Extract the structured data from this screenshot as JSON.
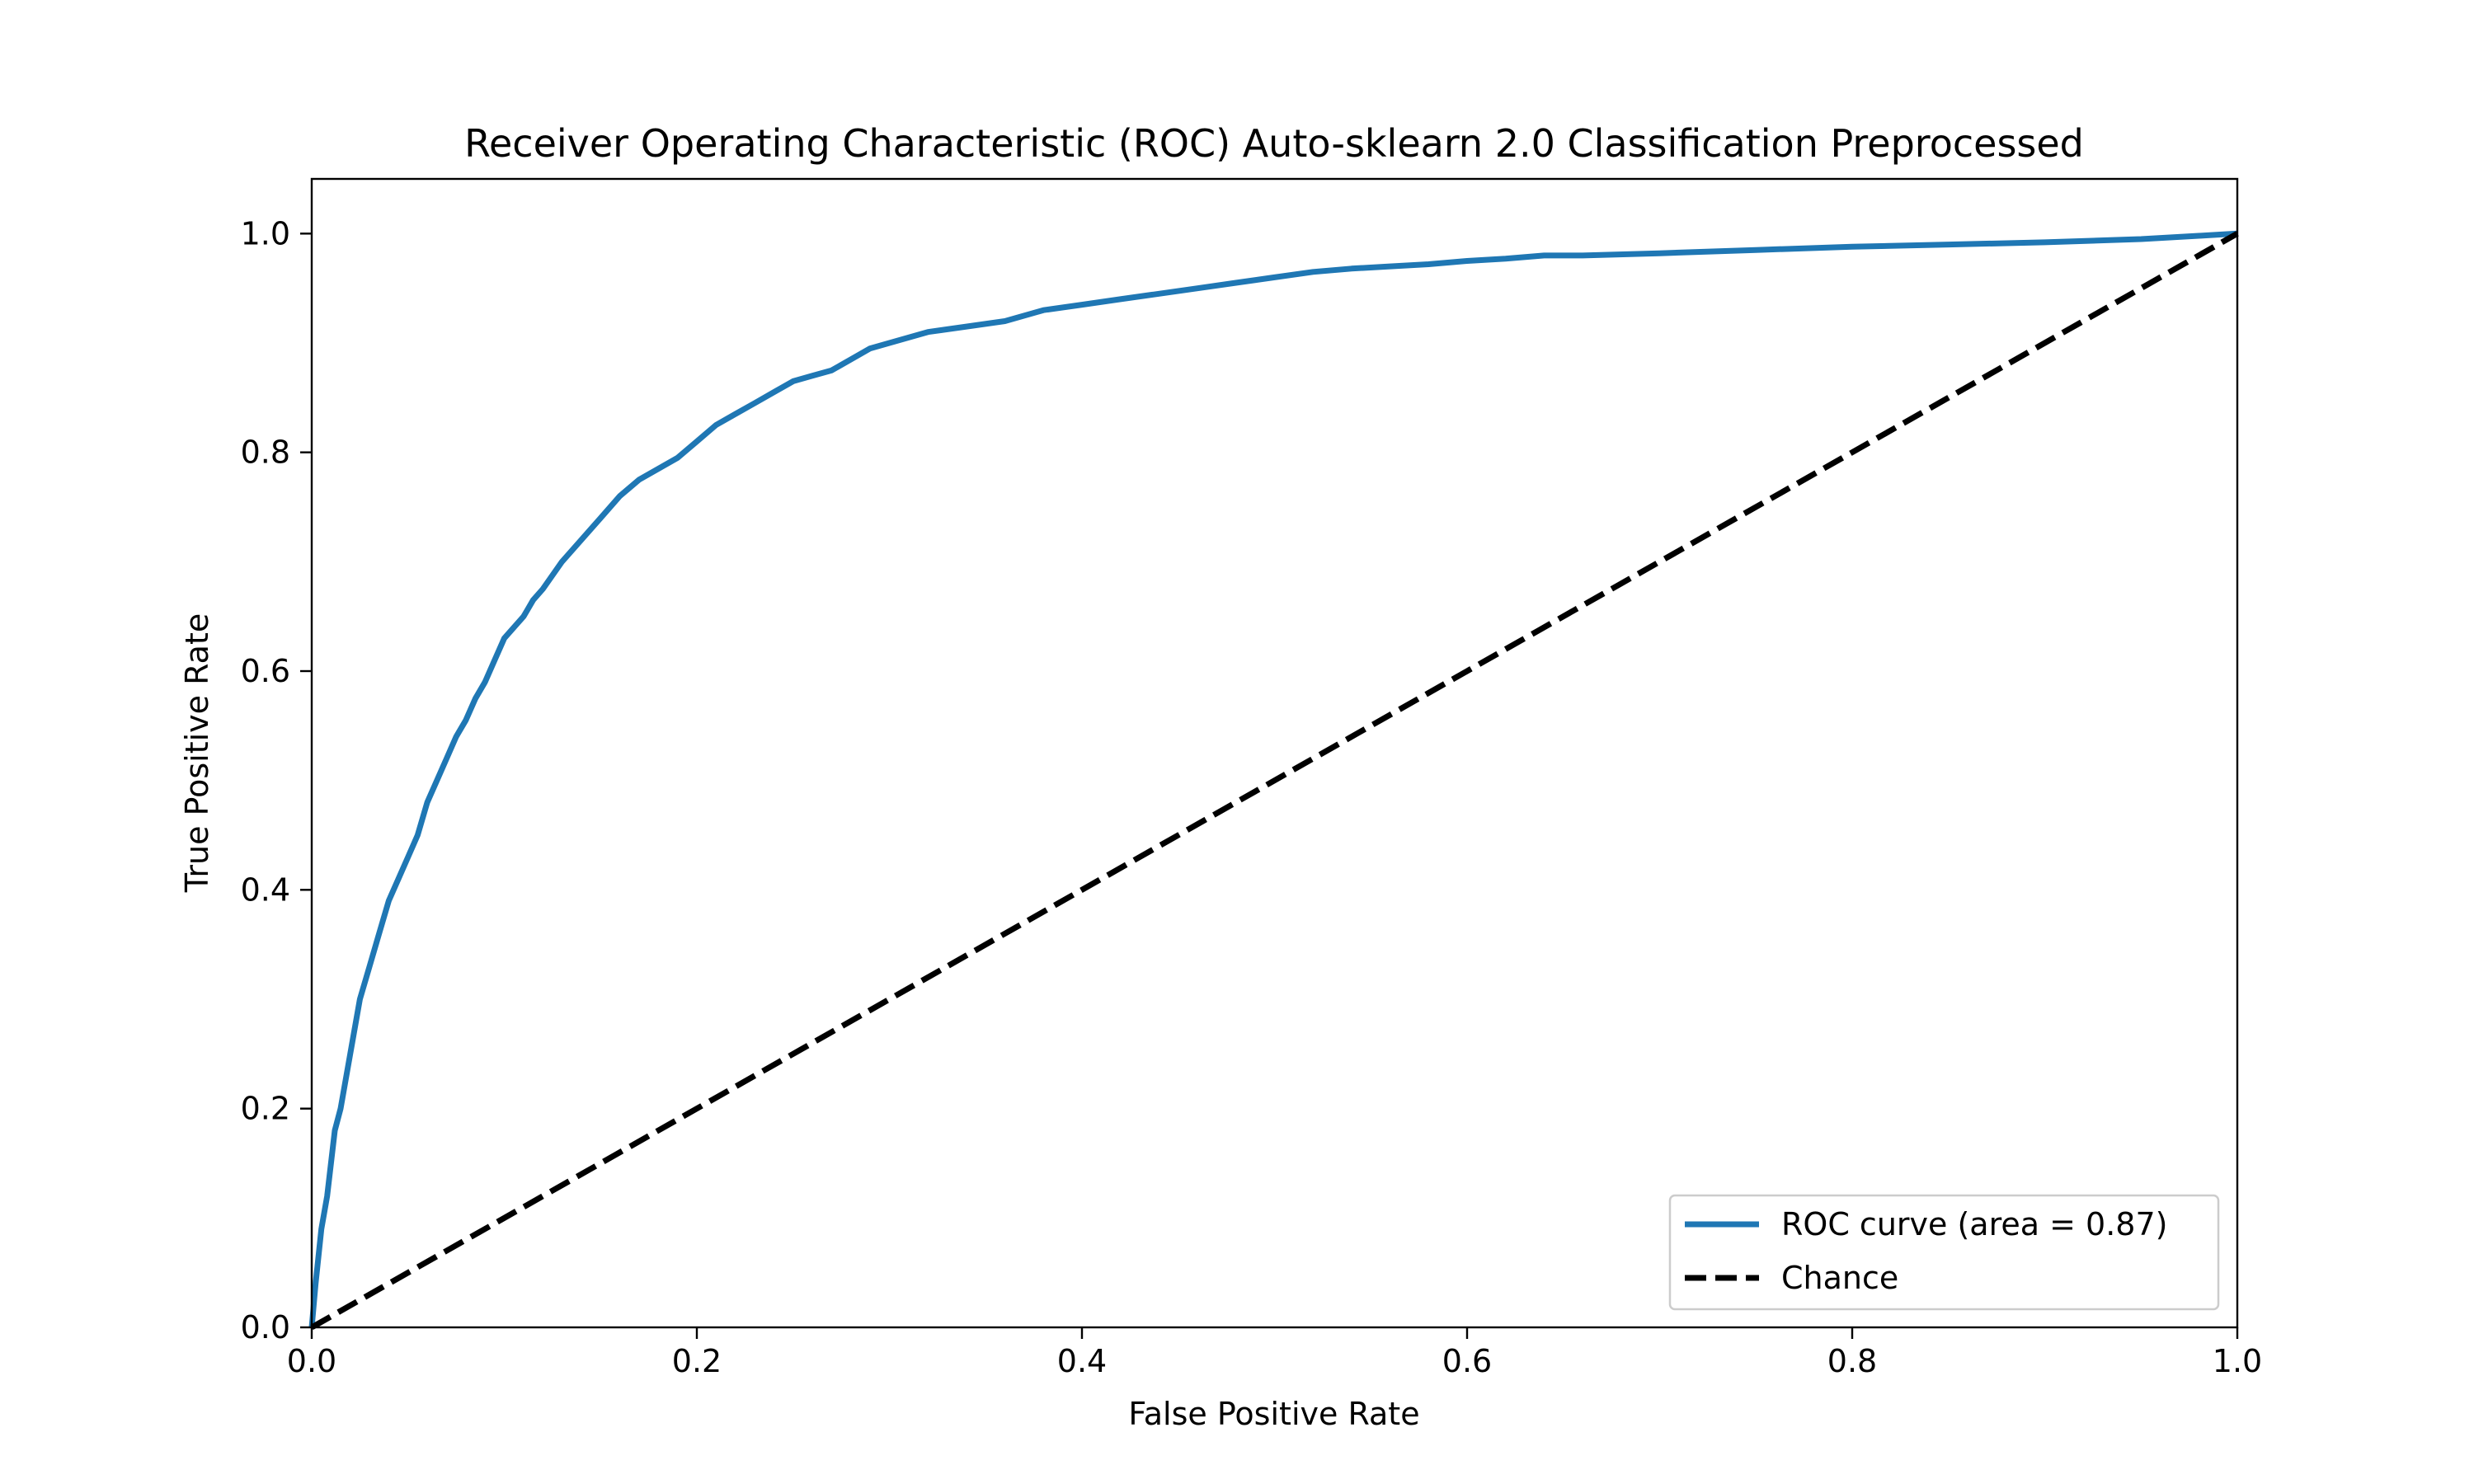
{
  "chart_data": {
    "type": "line",
    "title": "Receiver Operating Characteristic (ROC) Auto-sklearn 2.0 Classification Preprocessed",
    "xlabel": "False Positive Rate",
    "ylabel": "True Positive Rate",
    "xlim": [
      0.0,
      1.0
    ],
    "ylim": [
      0.0,
      1.05
    ],
    "xticks": [
      "0.0",
      "0.2",
      "0.4",
      "0.6",
      "0.8",
      "1.0"
    ],
    "yticks": [
      "0.0",
      "0.2",
      "0.4",
      "0.6",
      "0.8",
      "1.0"
    ],
    "grid": false,
    "legend_position": "lower-right",
    "series": [
      {
        "name": "ROC curve (area = 0.87)",
        "color": "#1f77b4",
        "style": "solid",
        "x": [
          0.0,
          0.002,
          0.005,
          0.008,
          0.012,
          0.015,
          0.02,
          0.025,
          0.03,
          0.035,
          0.04,
          0.045,
          0.05,
          0.055,
          0.06,
          0.065,
          0.07,
          0.075,
          0.08,
          0.085,
          0.09,
          0.095,
          0.1,
          0.105,
          0.11,
          0.115,
          0.12,
          0.13,
          0.14,
          0.15,
          0.16,
          0.17,
          0.18,
          0.19,
          0.2,
          0.21,
          0.22,
          0.23,
          0.24,
          0.25,
          0.26,
          0.27,
          0.28,
          0.29,
          0.3,
          0.32,
          0.34,
          0.36,
          0.38,
          0.4,
          0.42,
          0.44,
          0.46,
          0.48,
          0.5,
          0.52,
          0.54,
          0.56,
          0.58,
          0.6,
          0.62,
          0.64,
          0.66,
          0.7,
          0.75,
          0.8,
          0.85,
          0.9,
          0.95,
          0.98,
          1.0
        ],
        "y": [
          0.0,
          0.04,
          0.09,
          0.12,
          0.18,
          0.2,
          0.25,
          0.3,
          0.33,
          0.36,
          0.39,
          0.41,
          0.43,
          0.45,
          0.48,
          0.5,
          0.52,
          0.54,
          0.555,
          0.575,
          0.59,
          0.61,
          0.63,
          0.64,
          0.65,
          0.665,
          0.675,
          0.7,
          0.72,
          0.74,
          0.76,
          0.775,
          0.785,
          0.795,
          0.81,
          0.825,
          0.835,
          0.845,
          0.855,
          0.865,
          0.87,
          0.875,
          0.885,
          0.895,
          0.9,
          0.91,
          0.915,
          0.92,
          0.93,
          0.935,
          0.94,
          0.945,
          0.95,
          0.955,
          0.96,
          0.965,
          0.968,
          0.97,
          0.972,
          0.975,
          0.977,
          0.98,
          0.98,
          0.982,
          0.985,
          0.988,
          0.99,
          0.992,
          0.995,
          0.998,
          1.0
        ]
      },
      {
        "name": "Chance",
        "color": "#000000",
        "style": "dashed",
        "x": [
          0.0,
          1.0
        ],
        "y": [
          0.0,
          1.0
        ]
      }
    ]
  }
}
